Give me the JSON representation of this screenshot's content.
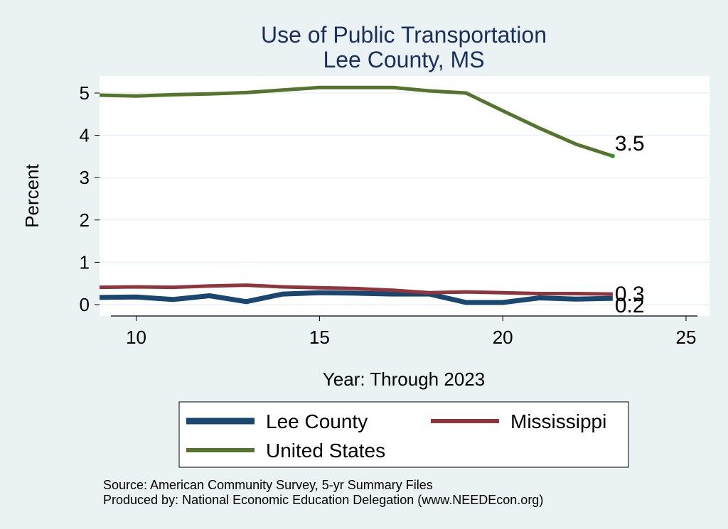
{
  "chart_data": {
    "type": "line",
    "title": "Use of Public Transportation",
    "subtitle": "Lee County, MS",
    "xlabel": "Year: Through 2023",
    "ylabel": "Percent",
    "xlim": [
      9,
      25
    ],
    "ylim": [
      0,
      5.2
    ],
    "x_ticks": [
      10,
      15,
      20,
      25
    ],
    "y_ticks": [
      0,
      1,
      2,
      3,
      4,
      5
    ],
    "grid": true,
    "legend_position": "bottom",
    "series": [
      {
        "name": "Lee County",
        "color": "#1a476f",
        "x": [
          9,
          10,
          11,
          12,
          13,
          14,
          15,
          16,
          17,
          18,
          19,
          20,
          21,
          22,
          23
        ],
        "y": [
          0.17,
          0.18,
          0.12,
          0.21,
          0.07,
          0.25,
          0.28,
          0.27,
          0.25,
          0.25,
          0.05,
          0.05,
          0.16,
          0.13,
          0.15
        ],
        "end_label": "0.2"
      },
      {
        "name": "Mississippi",
        "color": "#90353b",
        "x": [
          9,
          10,
          11,
          12,
          13,
          14,
          15,
          16,
          17,
          18,
          19,
          20,
          21,
          22,
          23
        ],
        "y": [
          0.41,
          0.42,
          0.41,
          0.44,
          0.46,
          0.42,
          0.4,
          0.38,
          0.34,
          0.28,
          0.3,
          0.28,
          0.26,
          0.26,
          0.25
        ],
        "end_label": "0.3"
      },
      {
        "name": "United States",
        "color": "#55752f",
        "x": [
          9,
          10,
          11,
          12,
          13,
          14,
          15,
          16,
          17,
          18,
          19,
          20,
          21,
          22,
          23
        ],
        "y": [
          4.95,
          4.93,
          4.96,
          4.98,
          5.01,
          5.07,
          5.13,
          5.13,
          5.13,
          5.05,
          5.0,
          4.58,
          4.17,
          3.79,
          3.51
        ],
        "end_label": "3.5"
      }
    ],
    "legend_layout": [
      [
        "Lee County",
        "Mississippi"
      ],
      [
        "United States"
      ]
    ],
    "notes": [
      "Source: American Community Survey, 5-yr Summary Files",
      "Produced by: National Economic Education Delegation (www.NEEDEcon.org)"
    ]
  }
}
